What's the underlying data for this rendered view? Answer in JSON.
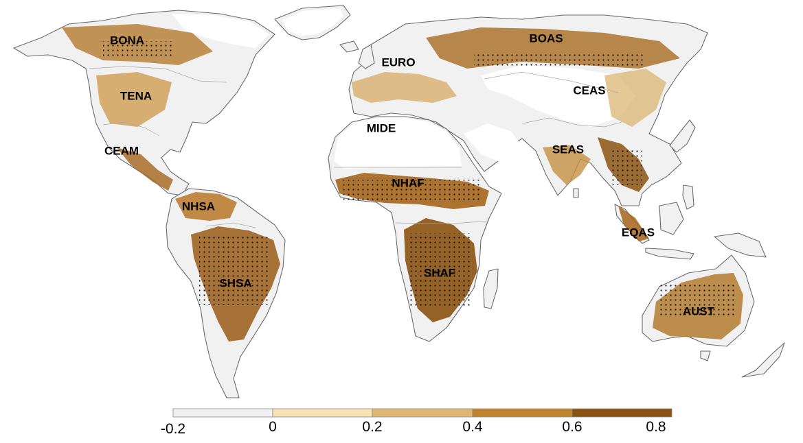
{
  "map": {
    "regions": [
      {
        "id": "BONA",
        "label": "BONA"
      },
      {
        "id": "TENA",
        "label": "TENA"
      },
      {
        "id": "CEAM",
        "label": "CEAM"
      },
      {
        "id": "NHSA",
        "label": "NHSA"
      },
      {
        "id": "SHSA",
        "label": "SHSA"
      },
      {
        "id": "EURO",
        "label": "EURO"
      },
      {
        "id": "MIDE",
        "label": "MIDE"
      },
      {
        "id": "NHAF",
        "label": "NHAF"
      },
      {
        "id": "SHAF",
        "label": "SHAF"
      },
      {
        "id": "BOAS",
        "label": "BOAS"
      },
      {
        "id": "CEAS",
        "label": "CEAS"
      },
      {
        "id": "SEAS",
        "label": "SEAS"
      },
      {
        "id": "EQAS",
        "label": "EQAS"
      },
      {
        "id": "AUST",
        "label": "AUST"
      }
    ]
  },
  "colorbar": {
    "ticks": [
      "-0.2",
      "0",
      "0.2",
      "0.4",
      "0.6",
      "0.8"
    ],
    "colors": [
      "#f0f0f0",
      "#f7e2b4",
      "#dcb872",
      "#c0852e",
      "#8b5311"
    ]
  }
}
